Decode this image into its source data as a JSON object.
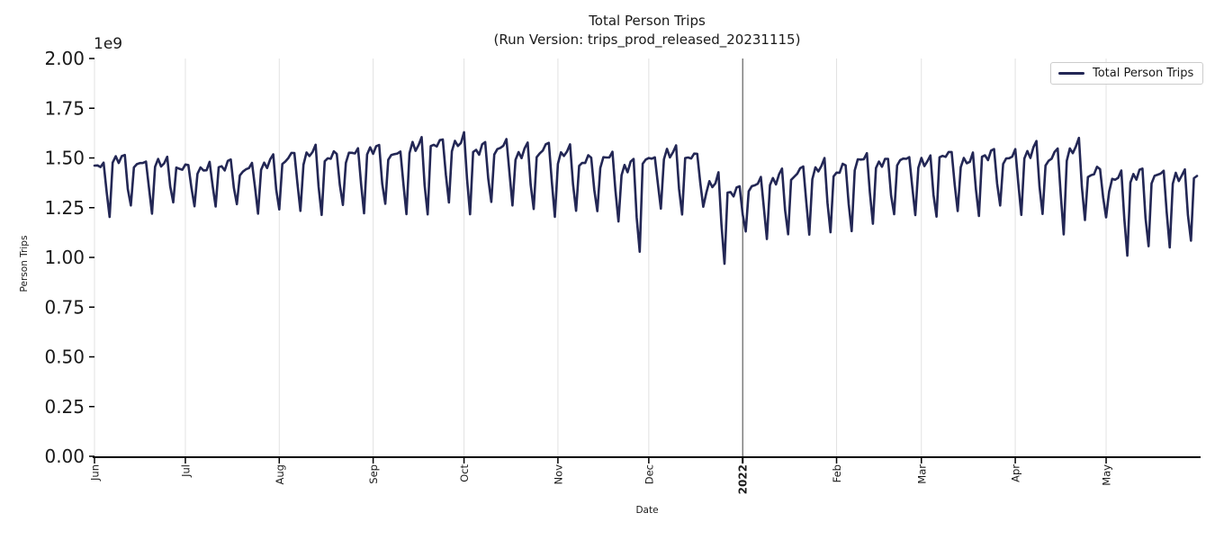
{
  "figure": {
    "title": "Total Person Trips",
    "subtitle": "(Run Version: trips_prod_released_20231115)"
  },
  "legend": {
    "label": "Total Person Trips",
    "position": "upper right"
  },
  "colors": {
    "series_line": "#232755",
    "month_gridline": "#e2e2e2",
    "year_divider_line": "#3f3f3f",
    "axis_spine": "#000000",
    "tick_text": "#1a1a1a",
    "legend_border": "#cccccc",
    "background": "#ffffff"
  },
  "chart_data": {
    "type": "line",
    "title": "Total Person Trips",
    "subtitle": "(Run Version: trips_prod_released_20231115)",
    "xlabel": "Date",
    "ylabel": "Person Trips",
    "y_offset_label": "1e9",
    "ylim": [
      0,
      2000000000
    ],
    "y_tick_values": [
      0.0,
      0.25,
      0.5,
      0.75,
      1.0,
      1.25,
      1.5,
      1.75,
      2.0
    ],
    "y_tick_labels": [
      "0.00",
      "0.25",
      "0.50",
      "0.75",
      "1.00",
      "1.25",
      "1.50",
      "1.75",
      "2.00"
    ],
    "grid": "vertical-month-gridlines-only",
    "legend_entries": [
      "Total Person Trips"
    ],
    "x_ticks": [
      {
        "label": "Jun",
        "day": 0,
        "bold": false
      },
      {
        "label": "Jul",
        "day": 30,
        "bold": false
      },
      {
        "label": "Aug",
        "day": 61,
        "bold": false
      },
      {
        "label": "Sep",
        "day": 92,
        "bold": false
      },
      {
        "label": "Oct",
        "day": 122,
        "bold": false
      },
      {
        "label": "Nov",
        "day": 153,
        "bold": false
      },
      {
        "label": "Dec",
        "day": 183,
        "bold": false
      },
      {
        "label": "2022",
        "day": 214,
        "bold": true
      },
      {
        "label": "Feb",
        "day": 245,
        "bold": false
      },
      {
        "label": "Mar",
        "day": 273,
        "bold": false
      },
      {
        "label": "Apr",
        "day": 304,
        "bold": false
      },
      {
        "label": "May",
        "day": 334,
        "bold": false
      }
    ],
    "year_divider_day": 214,
    "series": [
      {
        "name": "Total Person Trips",
        "frequency": "daily",
        "days": 365,
        "start_weekday_offset": 1,
        "units": "1e9 person trips",
        "weekday_profile": [
          0.8,
          0.9,
          0.86,
          0.94,
          1.0,
          0.42,
          0.0
        ],
        "weekly_envelope_peak_trough_1e9": [
          [
            1.48,
            1.22
          ],
          [
            1.52,
            1.25
          ],
          [
            1.5,
            1.22
          ],
          [
            1.5,
            1.27
          ],
          [
            1.48,
            1.24
          ],
          [
            1.47,
            1.26
          ],
          [
            1.49,
            1.25
          ],
          [
            1.47,
            1.23
          ],
          [
            1.5,
            1.24
          ],
          [
            1.53,
            1.24
          ],
          [
            1.55,
            1.23
          ],
          [
            1.53,
            1.26
          ],
          [
            1.55,
            1.24
          ],
          [
            1.57,
            1.26
          ],
          [
            1.55,
            1.22
          ],
          [
            1.6,
            1.21
          ],
          [
            1.61,
            1.26
          ],
          [
            1.62,
            1.22
          ],
          [
            1.58,
            1.26
          ],
          [
            1.59,
            1.27
          ],
          [
            1.56,
            1.24
          ],
          [
            1.58,
            1.21
          ],
          [
            1.55,
            1.25
          ],
          [
            1.51,
            1.23
          ],
          [
            1.53,
            1.2
          ],
          [
            1.5,
            1.02
          ],
          [
            1.52,
            1.25
          ],
          [
            1.56,
            1.21
          ],
          [
            1.54,
            1.24
          ],
          [
            1.42,
            0.97
          ],
          [
            1.36,
            1.11
          ],
          [
            1.4,
            1.1
          ],
          [
            1.43,
            1.11
          ],
          [
            1.46,
            1.12
          ],
          [
            1.48,
            1.14
          ],
          [
            1.47,
            1.13
          ],
          [
            1.52,
            1.19
          ],
          [
            1.5,
            1.21
          ],
          [
            1.52,
            1.22
          ],
          [
            1.51,
            1.2
          ],
          [
            1.55,
            1.22
          ],
          [
            1.52,
            1.21
          ],
          [
            1.55,
            1.24
          ],
          [
            1.54,
            1.22
          ],
          [
            1.57,
            1.21
          ],
          [
            1.55,
            1.12
          ],
          [
            1.58,
            1.2
          ],
          [
            1.45,
            1.2
          ],
          [
            1.43,
            1.03
          ],
          [
            1.45,
            1.05
          ],
          [
            1.45,
            1.06
          ],
          [
            1.44,
            1.08
          ],
          [
            1.45,
            1.1
          ]
        ],
        "notable_dips_1e9": {
          "thanksgiving_late_nov": 1.02,
          "christmas_late_dec": 0.97,
          "new_year_early_jan": 1.11,
          "easter_mid_apr": 1.12,
          "may_weekend_dips": 1.03
        }
      }
    ]
  }
}
